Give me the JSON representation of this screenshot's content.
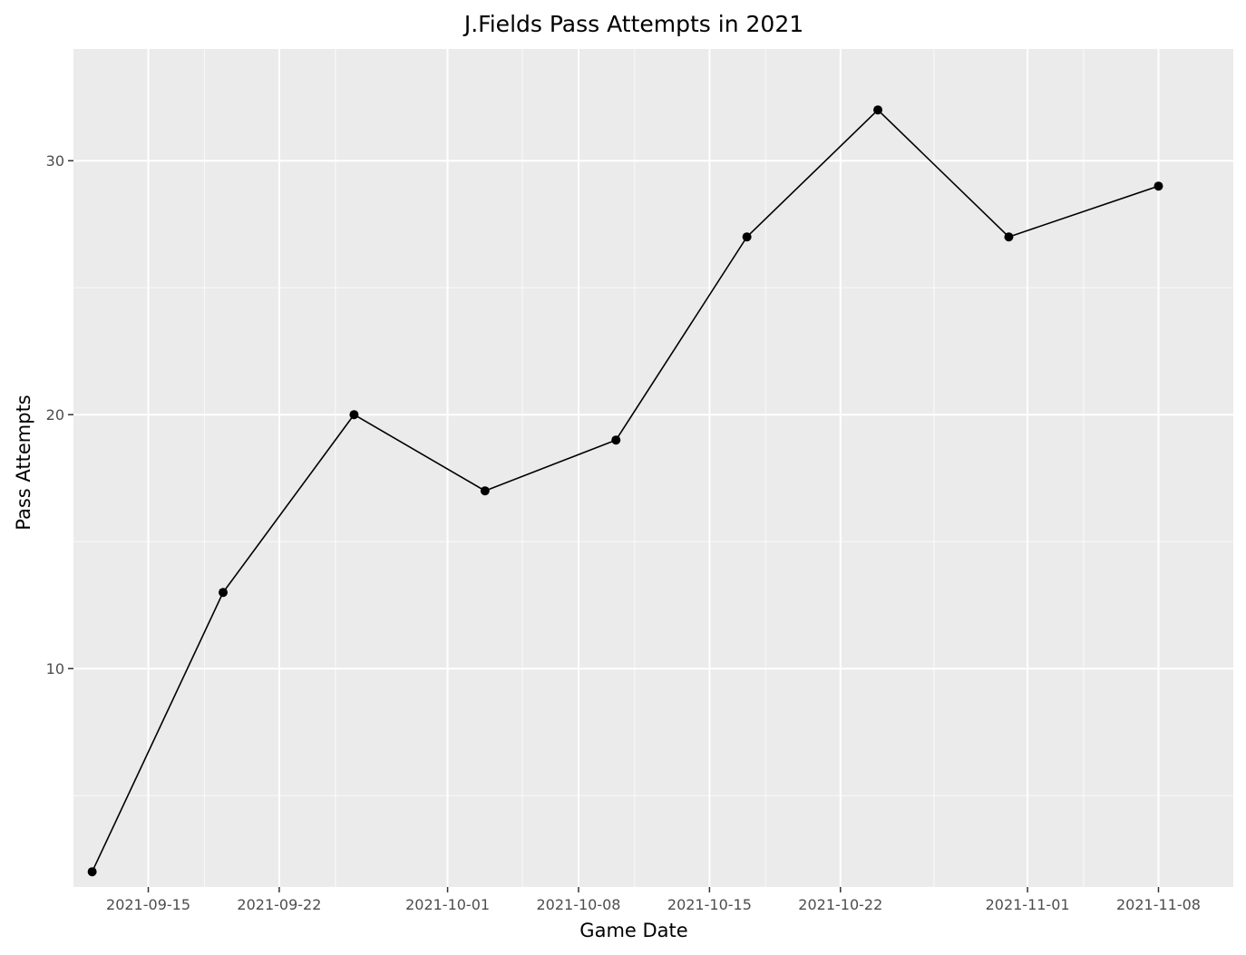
{
  "chart_data": {
    "type": "line",
    "title": "J.Fields Pass Attempts in 2021",
    "xlabel": "Game Date",
    "ylabel": "Pass Attempts",
    "x_type": "date",
    "xlim": [
      "2021-09-11",
      "2021-11-12"
    ],
    "ylim": [
      1.4,
      34.4
    ],
    "x_ticks": [
      "2021-09-15",
      "2021-09-22",
      "2021-10-01",
      "2021-10-08",
      "2021-10-15",
      "2021-10-22",
      "2021-11-01",
      "2021-11-08"
    ],
    "x_minor_ticks": [
      "2021-09-18",
      "2021-09-25",
      "2021-10-05",
      "2021-10-11",
      "2021-10-18",
      "2021-10-27",
      "2021-11-04"
    ],
    "y_ticks": [
      10,
      20,
      30
    ],
    "y_minor_ticks": [
      5,
      15,
      25
    ],
    "grid": true,
    "legend": "none",
    "colors": {
      "panel": "#ebebeb",
      "grid": "#ffffff",
      "line": "#000000",
      "point": "#000000"
    },
    "series": [
      {
        "x": [
          "2021-09-12",
          "2021-09-19",
          "2021-09-26",
          "2021-10-03",
          "2021-10-10",
          "2021-10-17",
          "2021-10-24",
          "2021-10-31",
          "2021-11-08"
        ],
        "y": [
          2,
          13,
          20,
          17,
          19,
          27,
          32,
          27,
          29
        ]
      }
    ]
  }
}
